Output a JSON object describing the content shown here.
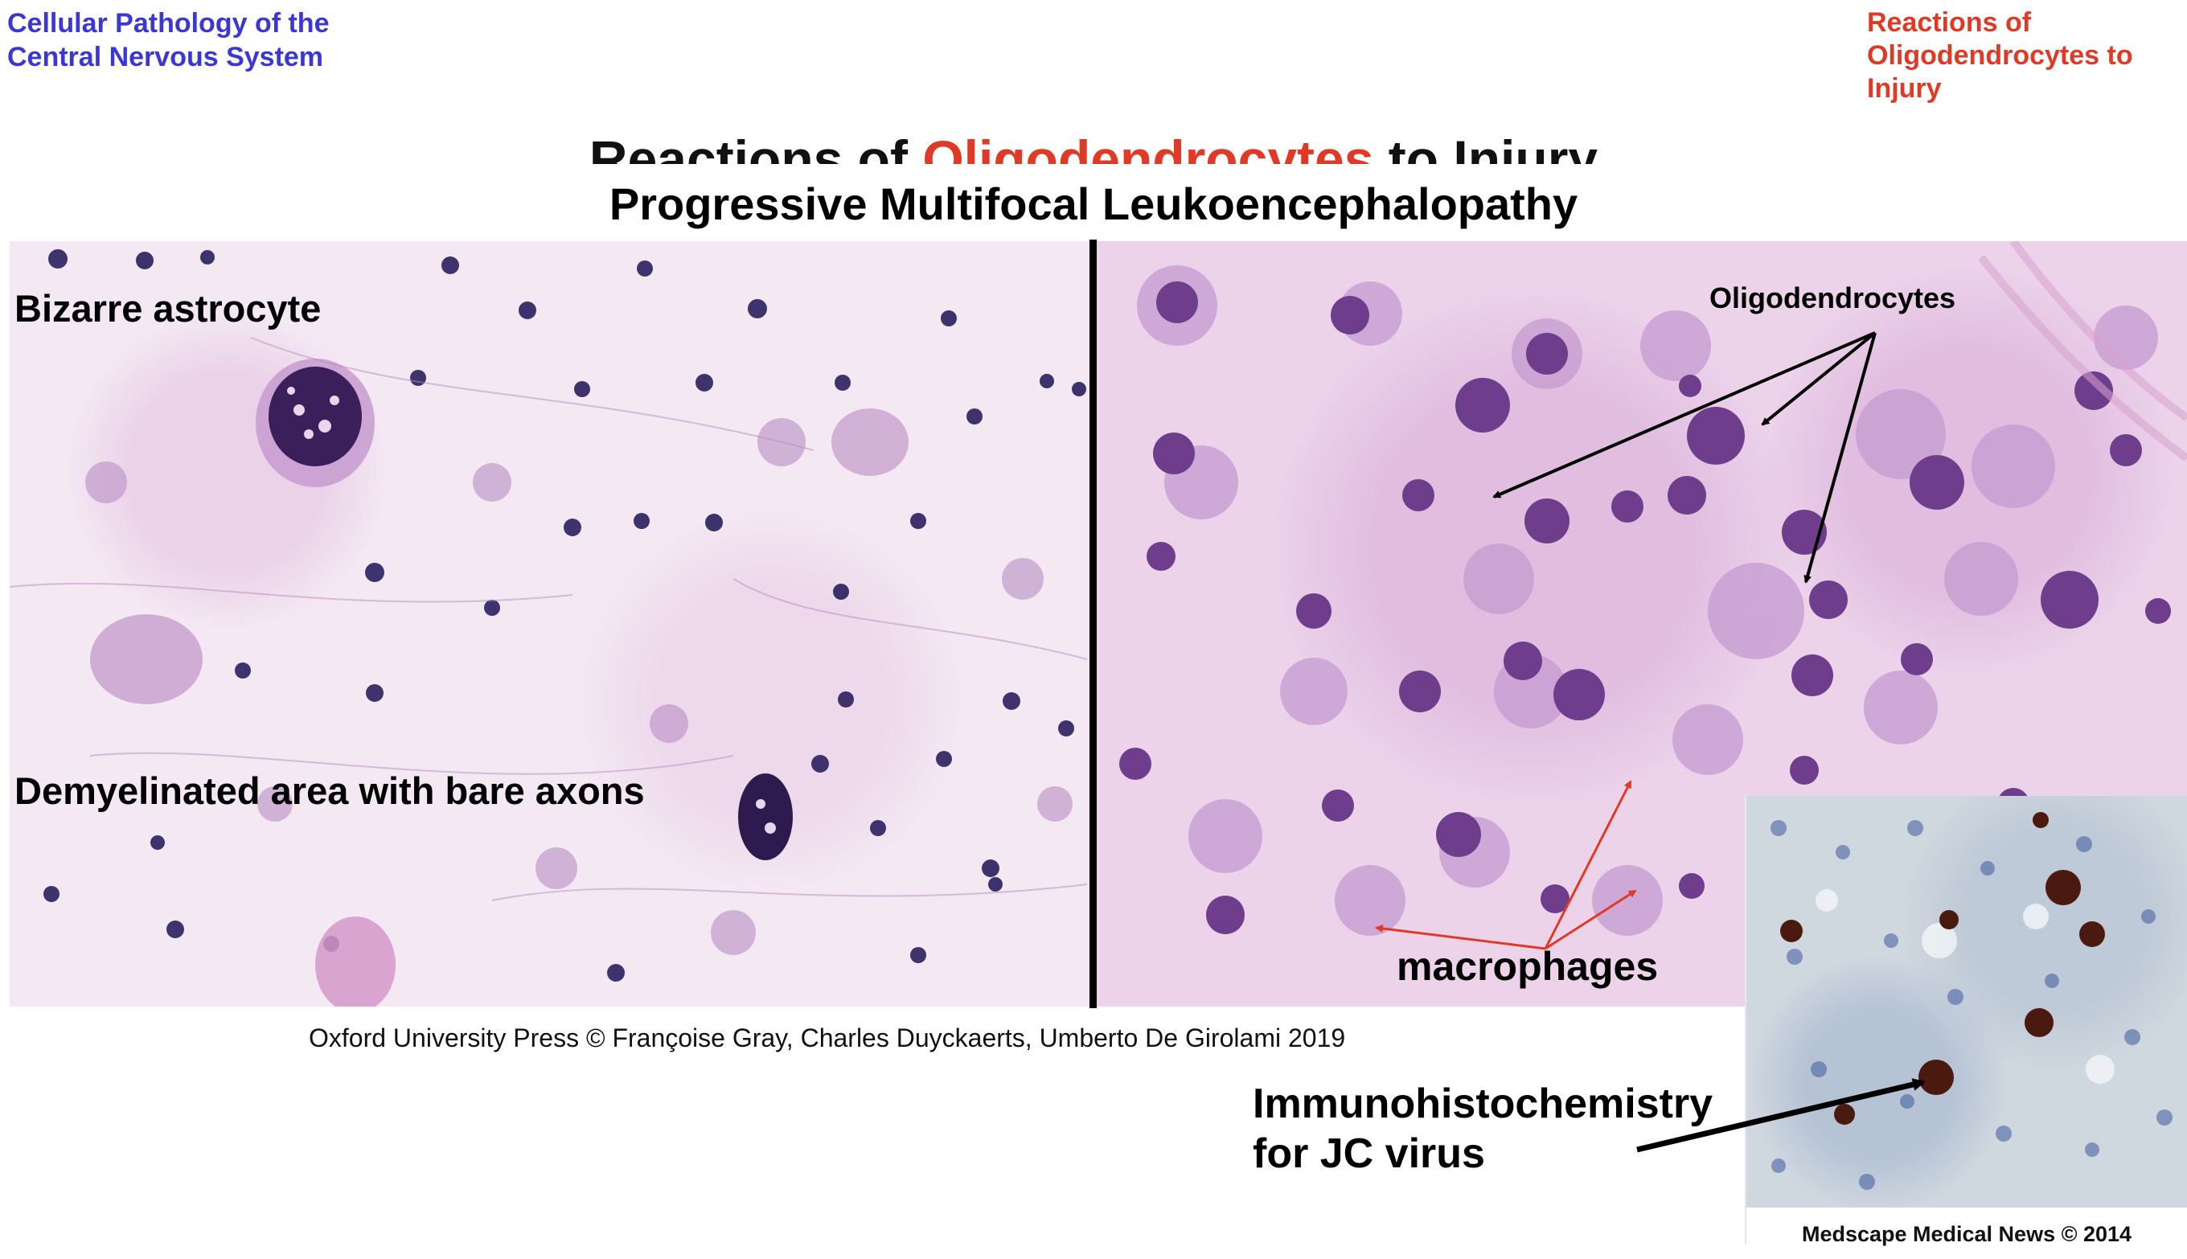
{
  "header": {
    "left_line1": "Cellular Pathology of the",
    "left_line2": "Central Nervous System",
    "right_line1": "Reactions of",
    "right_line2": "Oligodendrocytes to",
    "right_line3": "Injury"
  },
  "slide": {
    "title_part1": "Reactions of ",
    "title_part2": "Oligodendrocytes",
    "title_part3": " to Injury",
    "subtitle": "Progressive Multifocal Leukoencephalopathy"
  },
  "labels": {
    "bizarre_astrocyte": "Bizarre astrocyte",
    "demyelinated": "Demyelinated area with bare axons",
    "oligodendrocytes": "Oligodendrocytes",
    "macrophages": "macrophages",
    "ihc_line1": "Immunohistochemistry",
    "ihc_line2": "for JC virus"
  },
  "credits": {
    "oxford": "Oxford University Press © Françoise Gray, Charles Duyckaerts, Umberto De Girolami 2019",
    "medscape": "Medscape Medical News © 2014"
  },
  "colors": {
    "header_left": "#3b37d6",
    "header_right": "#e03a26",
    "macrophage_arrows": "#e03a26"
  }
}
